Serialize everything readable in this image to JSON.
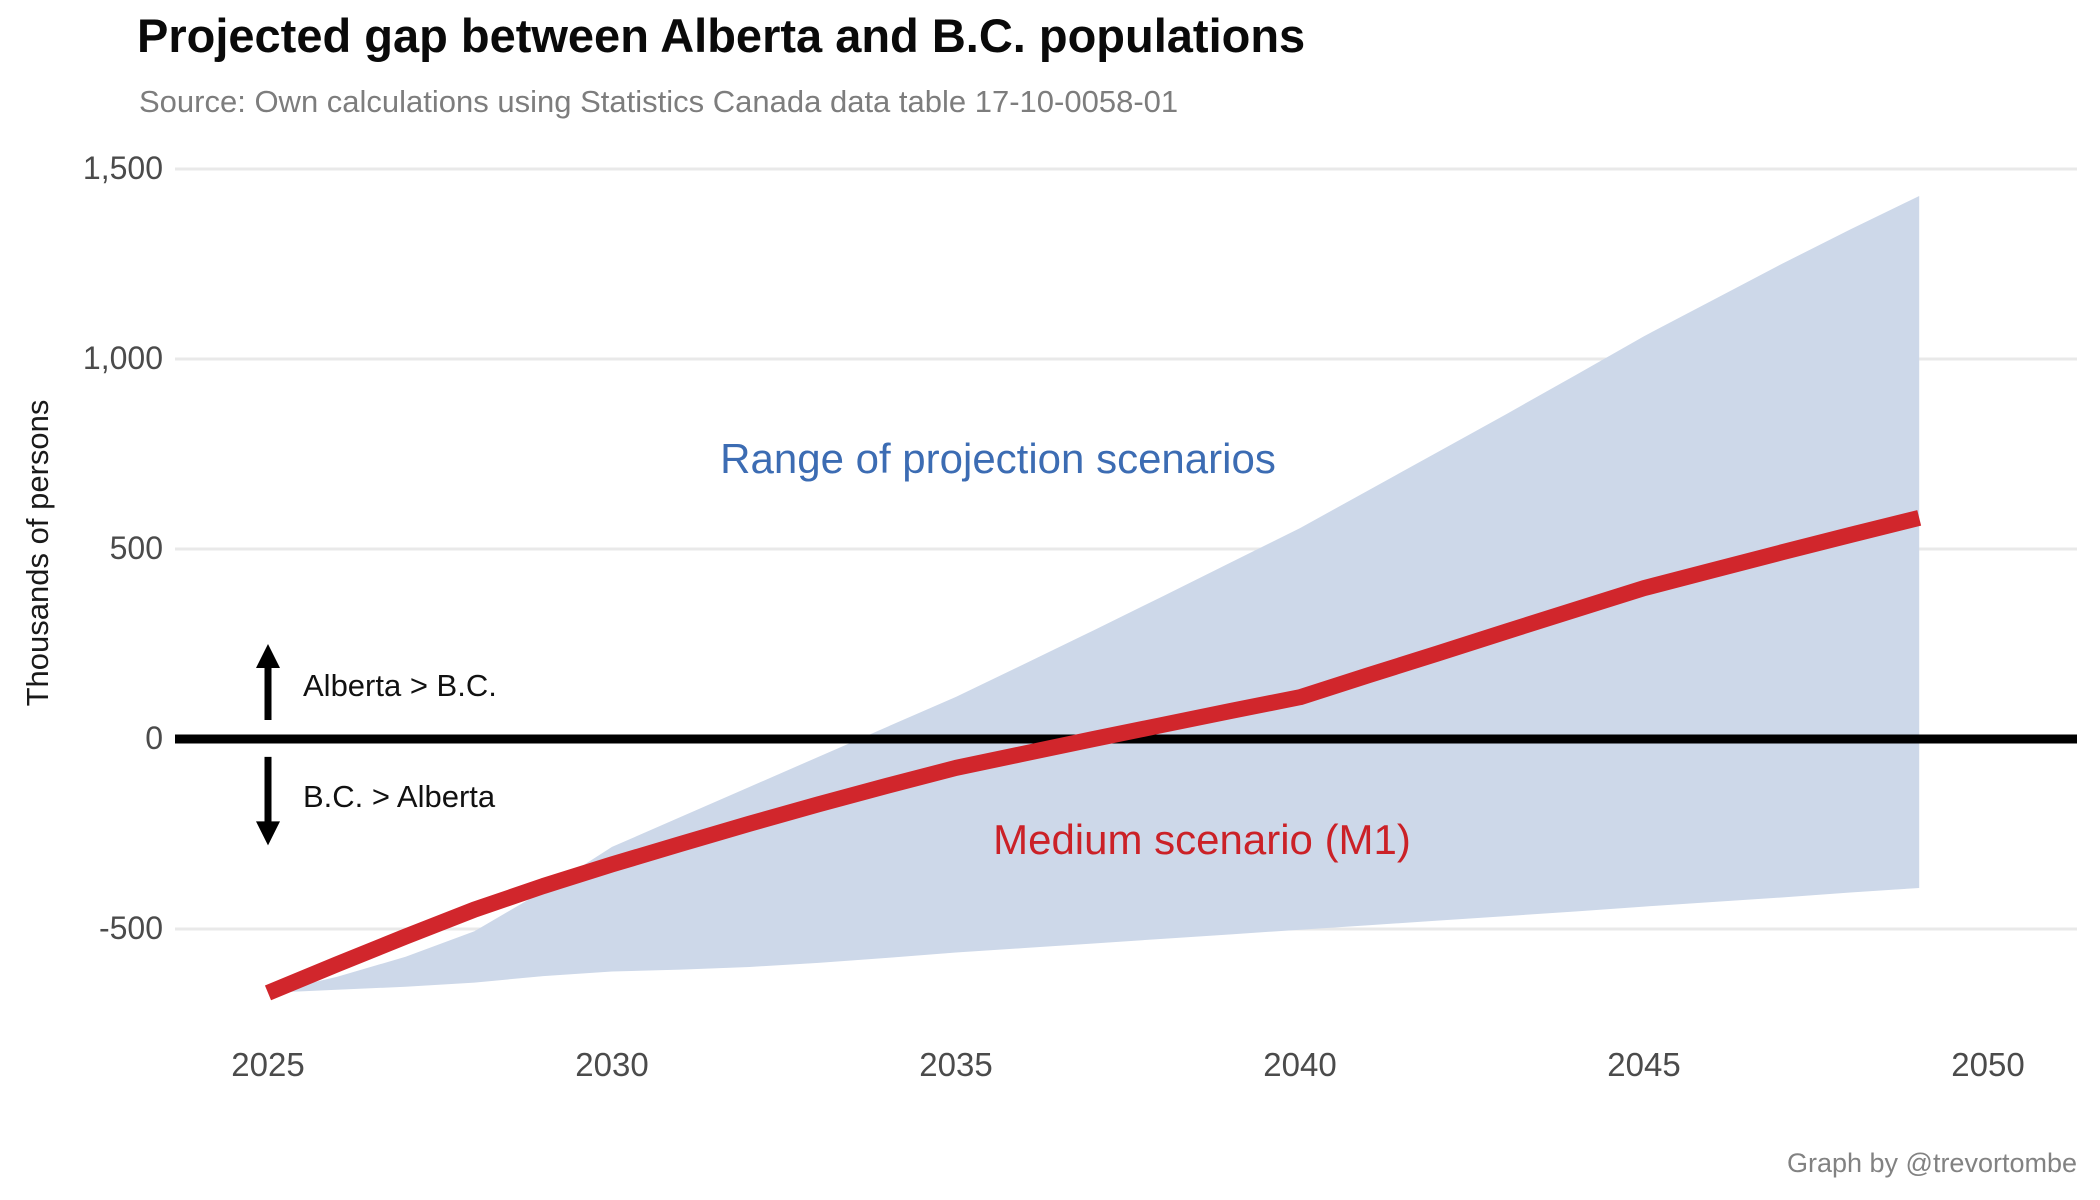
{
  "title": "Projected gap between Alberta and B.C. populations",
  "subtitle": "Source: Own calculations using Statistics Canada data table 17-10-0058-01",
  "credit": "Graph by @trevortombe",
  "colors": {
    "band": "#cdd8e9",
    "medium_line": "#d1262c",
    "zero_line": "#000000",
    "gridline": "#e9e9e9",
    "tick_text": "#4b4b4b",
    "range_label": "#3c6cb3",
    "medium_label": "#cb2127",
    "arrow": "#000000"
  },
  "chart_data": {
    "type": "area",
    "title": "Projected gap between Alberta and B.C. populations",
    "subtitle": "Source: Own calculations using Statistics Canada data table 17-10-0058-01",
    "xlabel": "",
    "ylabel": "Thousands of persons",
    "unit": "thousands of persons",
    "grid": true,
    "zero_line": true,
    "x": [
      2025,
      2026,
      2027,
      2028,
      2029,
      2030,
      2031,
      2032,
      2033,
      2034,
      2035,
      2036,
      2037,
      2038,
      2039,
      2040,
      2041,
      2042,
      2043,
      2044,
      2045,
      2046,
      2047,
      2048,
      2049
    ],
    "series": [
      {
        "name": "Range of projection scenarios (upper bound)",
        "role": "band_upper",
        "values": [
          -668,
          -626,
          -573,
          -506,
          -400,
          -284,
          -205,
          -126,
          -47,
          32,
          111,
          198,
          286,
          375,
          465,
          555,
          655,
          755,
          855,
          957,
          1060,
          1155,
          1250,
          1341,
          1429
        ]
      },
      {
        "name": "Medium scenario (M1)",
        "role": "medium_line",
        "values": [
          -668,
          -593,
          -520,
          -449,
          -387,
          -330,
          -276,
          -223,
          -172,
          -123,
          -76,
          -38,
          0,
          37,
          74,
          110,
          168,
          225,
          283,
          340,
          397,
          444,
          491,
          537,
          582
        ]
      },
      {
        "name": "Range of projection scenarios (lower bound)",
        "role": "band_lower",
        "values": [
          -668,
          -660,
          -652,
          -641,
          -624,
          -612,
          -607,
          -600,
          -589,
          -576,
          -562,
          -550,
          -538,
          -526,
          -514,
          -502,
          -490,
          -478,
          -466,
          -454,
          -441,
          -429,
          -417,
          -404,
          -392
        ]
      }
    ],
    "x_ticks": [
      {
        "value": 2025,
        "label": "2025"
      },
      {
        "value": 2030,
        "label": "2030"
      },
      {
        "value": 2035,
        "label": "2035"
      },
      {
        "value": 2040,
        "label": "2040"
      },
      {
        "value": 2045,
        "label": "2045"
      },
      {
        "value": 2050,
        "label": "2050"
      }
    ],
    "y_ticks": [
      {
        "value": -500,
        "label": "-500"
      },
      {
        "value": 0,
        "label": "0"
      },
      {
        "value": 500,
        "label": "500"
      },
      {
        "value": 1000,
        "label": "1,000"
      },
      {
        "value": 1500,
        "label": "1,500"
      }
    ],
    "xlim": [
      2023.5,
      2051.5
    ],
    "ylim": [
      -700,
      1500
    ],
    "legend_position": "none",
    "annotations": {
      "range_label": "Range of projection scenarios",
      "medium_label": "Medium scenario (M1)",
      "above_zero_label": "Alberta > B.C.",
      "below_zero_label": "B.C. > Alberta"
    },
    "arrows": [
      {
        "direction": "up",
        "meaning": "Alberta > B.C.",
        "from_value": 50,
        "to_value": 250
      },
      {
        "direction": "down",
        "meaning": "B.C. > Alberta",
        "from_value": -47,
        "to_value": -280
      }
    ]
  }
}
